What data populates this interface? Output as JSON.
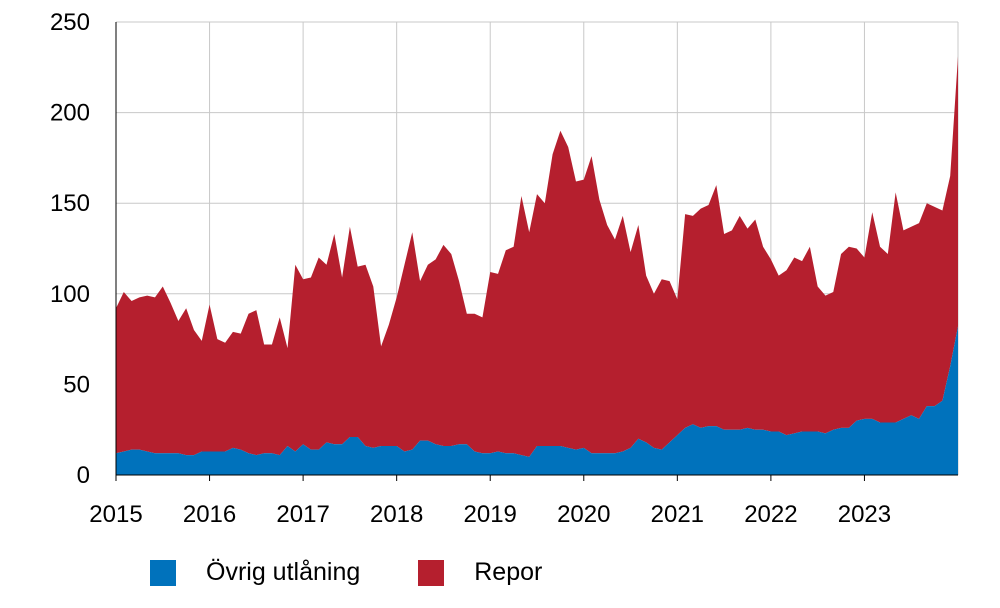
{
  "chart_data": {
    "type": "area",
    "stacked": true,
    "xlim": [
      2015,
      2024
    ],
    "ylim": [
      0,
      250
    ],
    "x_ticks": [
      "2015",
      "2016",
      "2017",
      "2018",
      "2019",
      "2020",
      "2021",
      "2022",
      "2023"
    ],
    "y_ticks": [
      "0",
      "50",
      "100",
      "150",
      "200",
      "250"
    ],
    "grid": true,
    "legend_position": "bottom",
    "series": [
      {
        "name": "Övrig utlåning",
        "color": "#0072bc",
        "values": [
          12,
          13,
          14,
          14,
          13,
          12,
          12,
          12,
          12,
          11,
          11,
          13,
          13,
          13,
          13,
          15,
          14,
          12,
          11,
          12,
          12,
          11,
          16,
          13,
          17,
          14,
          14,
          18,
          17,
          17,
          21,
          21,
          16,
          15,
          16,
          16,
          16,
          13,
          14,
          19,
          19,
          17,
          16,
          16,
          17,
          17,
          13,
          12,
          12,
          13,
          12,
          12,
          11,
          10,
          16,
          16,
          16,
          16,
          15,
          14,
          15,
          12,
          12,
          12,
          12,
          13,
          15,
          20,
          18,
          15,
          14,
          18,
          22,
          26,
          28,
          26,
          27,
          27,
          25,
          25,
          25,
          26,
          25,
          25,
          24,
          24,
          22,
          23,
          24,
          24,
          24,
          23,
          25,
          26,
          26,
          30,
          31,
          31,
          29,
          29,
          29,
          31,
          33,
          31,
          38,
          38,
          41,
          60,
          82
        ]
      },
      {
        "name": "Repor",
        "color": "#b51f2e",
        "values": [
          80,
          88,
          82,
          84,
          86,
          86,
          92,
          83,
          73,
          81,
          69,
          61,
          81,
          62,
          60,
          64,
          64,
          77,
          80,
          60,
          60,
          76,
          54,
          103,
          91,
          95,
          106,
          98,
          116,
          92,
          116,
          94,
          100,
          89,
          55,
          67,
          82,
          103,
          120,
          88,
          97,
          102,
          111,
          106,
          90,
          72,
          76,
          75,
          100,
          98,
          112,
          114,
          143,
          124,
          139,
          134,
          161,
          174,
          166,
          148,
          148,
          164,
          140,
          126,
          118,
          130,
          108,
          118,
          92,
          85,
          94,
          89,
          75,
          118,
          115,
          121,
          122,
          133,
          108,
          110,
          118,
          110,
          116,
          101,
          95,
          86,
          91,
          97,
          94,
          102,
          80,
          76,
          76,
          96,
          100,
          95,
          89,
          114,
          97,
          93,
          127,
          104,
          104,
          108,
          112,
          110,
          105,
          105,
          149
        ]
      }
    ]
  },
  "legend": {
    "items": [
      {
        "label": "Övrig utlåning",
        "color": "#0072bc"
      },
      {
        "label": "Repor",
        "color": "#b51f2e"
      }
    ]
  }
}
